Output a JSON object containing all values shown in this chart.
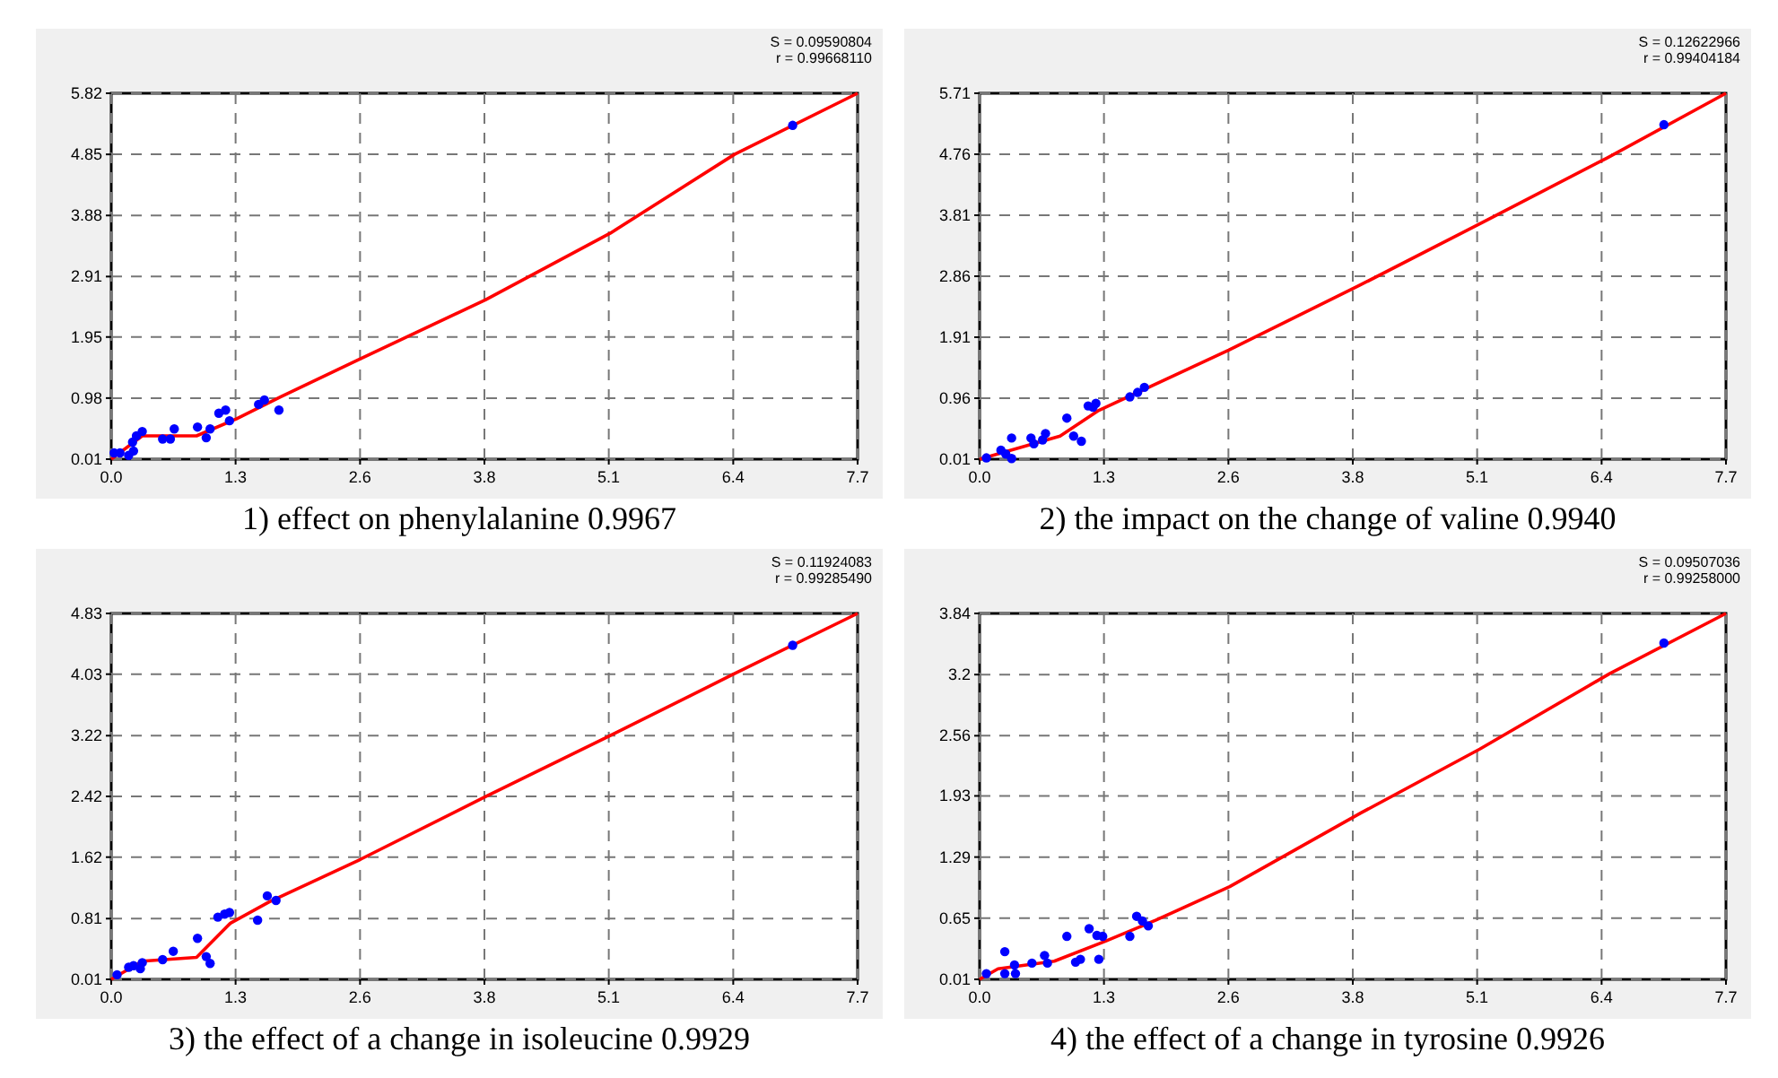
{
  "chart_data": [
    {
      "type": "scatter",
      "title": "1) effect on phenylalanine 0.9967",
      "annotations": [
        "S = 0.09590804",
        "r = 0.99668110"
      ],
      "grid": true,
      "xlim": [
        0,
        7.7
      ],
      "xticks": [
        {
          "value": 0,
          "label": "0.0"
        },
        {
          "value": 1.283,
          "label": "1.3"
        },
        {
          "value": 2.567,
          "label": "2.6"
        },
        {
          "value": 3.85,
          "label": "3.8"
        },
        {
          "value": 5.133,
          "label": "5.1"
        },
        {
          "value": 6.417,
          "label": "6.4"
        },
        {
          "value": 7.7,
          "label": "7.7"
        }
      ],
      "ylim": [
        0.01,
        5.82
      ],
      "yticks": [
        0.01,
        0.98,
        1.95,
        2.91,
        3.88,
        4.85,
        5.82
      ],
      "series": [
        {
          "color": "#0000ff",
          "marker": "circle",
          "x": [
            0.03,
            0.09,
            0.18,
            0.22,
            0.26,
            0.32,
            0.23,
            0.53,
            0.61,
            0.65,
            0.89,
            0.98,
            1.02,
            1.11,
            1.18,
            1.22,
            1.52,
            1.58,
            1.73,
            7.03
          ],
          "values": [
            0.11,
            0.11,
            0.07,
            0.28,
            0.38,
            0.45,
            0.14,
            0.33,
            0.33,
            0.49,
            0.52,
            0.35,
            0.49,
            0.74,
            0.79,
            0.62,
            0.88,
            0.95,
            0.79,
            5.31
          ]
        },
        {
          "type": "line",
          "color": "#ff0000",
          "marker": "none",
          "x": [
            0,
            0.32,
            0.88,
            1.29,
            1.75,
            2.54,
            3.86,
            5.15,
            6.43,
            7.7
          ],
          "values": [
            0.01,
            0.38,
            0.38,
            0.65,
            1.0,
            1.58,
            2.54,
            3.6,
            4.85,
            5.82
          ]
        }
      ]
    },
    {
      "type": "scatter",
      "title": "2) the impact on the change of valine 0.9940",
      "annotations": [
        "S = 0.12622966",
        "r = 0.99404184"
      ],
      "grid": true,
      "xlim": [
        0,
        7.7
      ],
      "xticks": [
        {
          "value": 0,
          "label": "0.0"
        },
        {
          "value": 1.283,
          "label": "1.3"
        },
        {
          "value": 2.567,
          "label": "2.6"
        },
        {
          "value": 3.85,
          "label": "3.8"
        },
        {
          "value": 5.133,
          "label": "5.1"
        },
        {
          "value": 6.417,
          "label": "6.4"
        },
        {
          "value": 7.7,
          "label": "7.7"
        }
      ],
      "ylim": [
        0.01,
        5.71
      ],
      "yticks": [
        0.01,
        0.96,
        1.91,
        2.86,
        3.81,
        4.76,
        5.71
      ],
      "series": [
        {
          "color": "#0000ff",
          "marker": "circle",
          "x": [
            0.07,
            0.22,
            0.33,
            0.33,
            0.27,
            0.53,
            0.56,
            0.65,
            0.68,
            0.9,
            0.97,
            1.05,
            1.12,
            1.17,
            1.2,
            1.55,
            1.63,
            1.7,
            7.06
          ],
          "values": [
            0.03,
            0.15,
            0.34,
            0.02,
            0.09,
            0.34,
            0.25,
            0.31,
            0.41,
            0.65,
            0.37,
            0.29,
            0.84,
            0.82,
            0.88,
            0.98,
            1.05,
            1.13,
            5.22
          ]
        },
        {
          "type": "line",
          "color": "#ff0000",
          "marker": "none",
          "x": [
            0,
            0.83,
            1.23,
            2.57,
            3.91,
            5.19,
            6.47,
            7.7
          ],
          "values": [
            0.01,
            0.37,
            0.77,
            1.71,
            2.71,
            3.7,
            4.7,
            5.71
          ]
        }
      ]
    },
    {
      "type": "scatter",
      "title": "3) the effect of a change in isoleucine 0.9929",
      "annotations": [
        "S = 0.11924083",
        "r = 0.99285490"
      ],
      "grid": true,
      "xlim": [
        0,
        7.7
      ],
      "xticks": [
        {
          "value": 0,
          "label": "0.0"
        },
        {
          "value": 1.283,
          "label": "1.3"
        },
        {
          "value": 2.567,
          "label": "2.6"
        },
        {
          "value": 3.85,
          "label": "3.8"
        },
        {
          "value": 5.133,
          "label": "5.1"
        },
        {
          "value": 6.417,
          "label": "6.4"
        },
        {
          "value": 7.7,
          "label": "7.7"
        }
      ],
      "ylim": [
        0.01,
        4.83
      ],
      "yticks": [
        0.01,
        0.81,
        1.62,
        2.42,
        3.22,
        4.03,
        4.83
      ],
      "series": [
        {
          "color": "#0000ff",
          "marker": "circle",
          "x": [
            0.06,
            0.18,
            0.23,
            0.32,
            0.3,
            0.53,
            0.64,
            0.89,
            0.98,
            1.02,
            1.1,
            1.17,
            1.22,
            1.51,
            1.61,
            1.7,
            7.03
          ],
          "values": [
            0.07,
            0.17,
            0.19,
            0.23,
            0.15,
            0.27,
            0.38,
            0.55,
            0.31,
            0.22,
            0.83,
            0.87,
            0.89,
            0.79,
            1.11,
            1.05,
            4.41
          ]
        },
        {
          "type": "line",
          "color": "#ff0000",
          "marker": "none",
          "x": [
            0,
            0.32,
            0.88,
            1.23,
            1.63,
            2.57,
            3.85,
            5.13,
            6.42,
            7.7
          ],
          "values": [
            0.01,
            0.25,
            0.3,
            0.75,
            1.03,
            1.59,
            2.41,
            3.21,
            4.03,
            4.83
          ]
        }
      ]
    },
    {
      "type": "scatter",
      "title": "4) the effect of a change in tyrosine 0.9926",
      "annotations": [
        "S = 0.09507036",
        "r = 0.99258000"
      ],
      "grid": true,
      "xlim": [
        0,
        7.7
      ],
      "xticks": [
        {
          "value": 0,
          "label": "0.0"
        },
        {
          "value": 1.283,
          "label": "1.3"
        },
        {
          "value": 2.567,
          "label": "2.6"
        },
        {
          "value": 3.85,
          "label": "3.8"
        },
        {
          "value": 5.133,
          "label": "5.1"
        },
        {
          "value": 6.417,
          "label": "6.4"
        },
        {
          "value": 7.7,
          "label": "7.7"
        }
      ],
      "ylim": [
        0.01,
        3.84
      ],
      "yticks": [
        0.01,
        0.65,
        1.29,
        1.93,
        2.56,
        3.2,
        3.84
      ],
      "series": [
        {
          "color": "#0000ff",
          "marker": "circle",
          "x": [
            0.07,
            0.26,
            0.26,
            0.36,
            0.37,
            0.54,
            0.67,
            0.7,
            0.9,
            0.99,
            1.04,
            1.13,
            1.21,
            1.23,
            1.27,
            1.55,
            1.62,
            1.68,
            1.74,
            7.06
          ],
          "values": [
            0.07,
            0.3,
            0.07,
            0.16,
            0.07,
            0.18,
            0.26,
            0.18,
            0.46,
            0.19,
            0.22,
            0.54,
            0.47,
            0.22,
            0.46,
            0.46,
            0.67,
            0.62,
            0.57,
            3.53
          ]
        },
        {
          "type": "line",
          "color": "#ff0000",
          "marker": "none",
          "x": [
            0,
            0.19,
            0.77,
            1.3,
            1.82,
            2.58,
            3.93,
            5.16,
            6.5,
            7.7
          ],
          "values": [
            0.01,
            0.12,
            0.2,
            0.41,
            0.63,
            0.98,
            1.75,
            2.42,
            3.21,
            3.84
          ]
        }
      ]
    }
  ]
}
